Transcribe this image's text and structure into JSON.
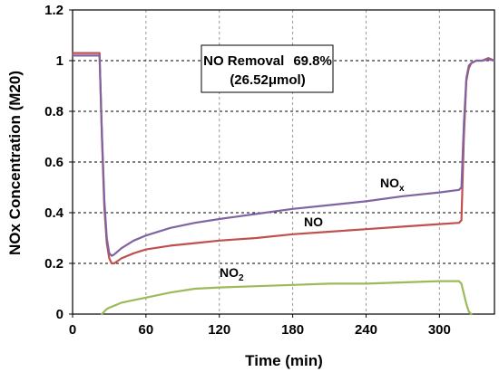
{
  "chart_data": {
    "type": "line",
    "title": "",
    "xlabel": "Time (min)",
    "ylabel": "NOx Concentration (M20)",
    "xlim": [
      0,
      345
    ],
    "ylim": [
      0,
      1.2
    ],
    "xticks": [
      0,
      60,
      120,
      180,
      240,
      300
    ],
    "yticks": [
      0,
      0.2,
      0.4,
      0.6,
      0.8,
      1,
      1.2
    ],
    "ytick_labels": [
      "0",
      "0.2",
      "0.4",
      "0.6",
      "0.8",
      "1",
      "1.2"
    ],
    "grid": true,
    "annotation": {
      "line1_label": "NO Removal",
      "line1_value": "69.8%",
      "line2": "(26.52μmol)"
    },
    "series": [
      {
        "name": "NO",
        "label_main": "NO",
        "label_sub": "",
        "color": "#c0504d",
        "x": [
          0,
          10,
          20,
          22,
          24,
          26,
          28,
          30,
          32,
          34,
          40,
          50,
          60,
          80,
          100,
          120,
          150,
          180,
          210,
          240,
          270,
          300,
          316,
          318,
          320,
          322,
          324,
          326,
          330,
          335,
          340,
          345
        ],
        "y": [
          1.03,
          1.03,
          1.03,
          1.03,
          0.7,
          0.42,
          0.28,
          0.22,
          0.2,
          0.2,
          0.22,
          0.24,
          0.255,
          0.27,
          0.28,
          0.29,
          0.3,
          0.315,
          0.325,
          0.335,
          0.345,
          0.355,
          0.36,
          0.37,
          0.7,
          0.92,
          0.97,
          0.99,
          1.0,
          1.0,
          1.01,
          1.0
        ]
      },
      {
        "name": "NOx",
        "label_main": "NO",
        "label_sub": "x",
        "color": "#8064a2",
        "x": [
          0,
          10,
          20,
          22,
          24,
          26,
          28,
          30,
          32,
          34,
          40,
          50,
          60,
          80,
          100,
          120,
          150,
          180,
          210,
          240,
          270,
          300,
          316,
          318,
          320,
          322,
          324,
          326,
          330,
          335,
          340,
          345
        ],
        "y": [
          1.02,
          1.02,
          1.02,
          1.02,
          0.72,
          0.45,
          0.3,
          0.24,
          0.23,
          0.235,
          0.26,
          0.29,
          0.31,
          0.34,
          0.36,
          0.375,
          0.395,
          0.415,
          0.43,
          0.445,
          0.465,
          0.48,
          0.49,
          0.5,
          0.75,
          0.93,
          0.98,
          0.99,
          1.0,
          1.0,
          1.005,
          1.0
        ]
      },
      {
        "name": "NO2",
        "label_main": "NO",
        "label_sub": "2",
        "color": "#9bbb59",
        "x": [
          24,
          26,
          28,
          30,
          35,
          40,
          50,
          60,
          80,
          100,
          120,
          150,
          180,
          210,
          240,
          270,
          300,
          316,
          318,
          320,
          322,
          324,
          326
        ],
        "y": [
          0.0,
          0.01,
          0.02,
          0.025,
          0.035,
          0.045,
          0.055,
          0.065,
          0.085,
          0.1,
          0.105,
          0.11,
          0.115,
          0.12,
          0.12,
          0.125,
          0.13,
          0.13,
          0.12,
          0.08,
          0.04,
          0.01,
          0.0
        ]
      }
    ]
  }
}
